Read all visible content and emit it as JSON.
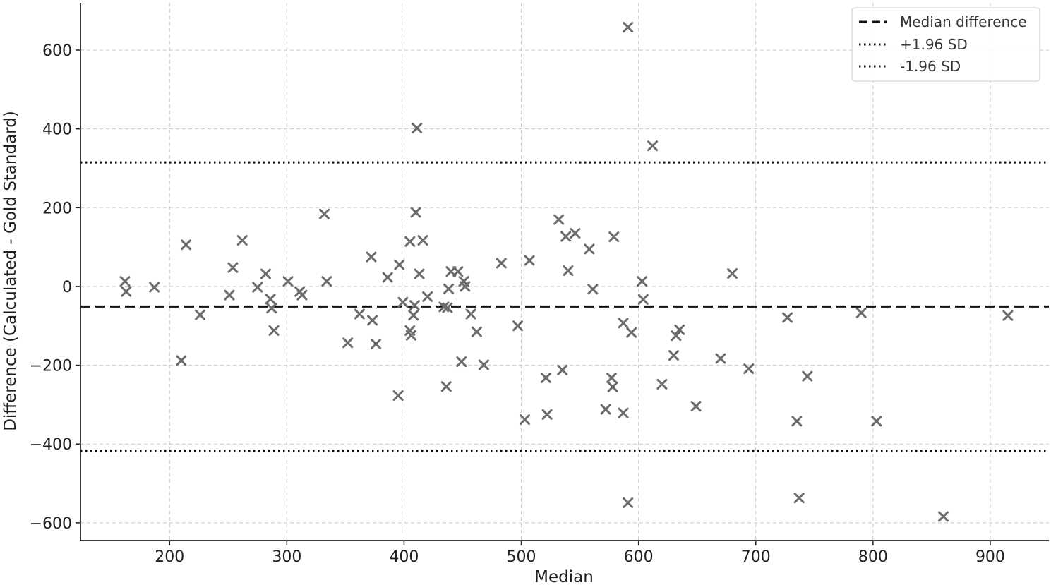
{
  "chart_data": {
    "type": "scatter",
    "title": "",
    "xlabel": "Median",
    "ylabel": "Difference (Calculated - Gold Standard)",
    "xlim": [
      124,
      950
    ],
    "ylim": [
      -645,
      720
    ],
    "xticks": [
      200,
      300,
      400,
      500,
      600,
      700,
      800,
      900
    ],
    "yticks": [
      -600,
      -400,
      -200,
      0,
      200,
      400,
      600
    ],
    "ytick_labels": [
      "−600",
      "−400",
      "−200",
      "0",
      "200",
      "400",
      "600"
    ],
    "grid": true,
    "legend_position": "top-right",
    "marker": "x",
    "marker_color": "#6b6b6b",
    "reference_lines": [
      {
        "name": "Median difference",
        "value": -51,
        "style": "dashed"
      },
      {
        "name": "+1.96 SD",
        "value": 315,
        "style": "dotted"
      },
      {
        "name": "-1.96 SD",
        "value": -417,
        "style": "dotted"
      }
    ],
    "points": [
      [
        162,
        13
      ],
      [
        163,
        -13
      ],
      [
        187,
        -2
      ],
      [
        210,
        -188
      ],
      [
        214,
        106
      ],
      [
        226,
        -72
      ],
      [
        251,
        -22
      ],
      [
        254,
        48
      ],
      [
        262,
        117
      ],
      [
        275,
        -2
      ],
      [
        282,
        32
      ],
      [
        286,
        -32
      ],
      [
        287,
        -55
      ],
      [
        289,
        -112
      ],
      [
        301,
        13
      ],
      [
        311,
        -13
      ],
      [
        313,
        -22
      ],
      [
        332,
        184
      ],
      [
        334,
        13
      ],
      [
        352,
        -143
      ],
      [
        362,
        -70
      ],
      [
        372,
        75
      ],
      [
        373,
        -86
      ],
      [
        376,
        -146
      ],
      [
        386,
        23
      ],
      [
        395,
        -277
      ],
      [
        396,
        55
      ],
      [
        399,
        -40
      ],
      [
        405,
        114
      ],
      [
        405,
        -112
      ],
      [
        406,
        -124
      ],
      [
        408,
        -73
      ],
      [
        409,
        -48
      ],
      [
        410,
        188
      ],
      [
        411,
        402
      ],
      [
        413,
        32
      ],
      [
        416,
        117
      ],
      [
        420,
        -26
      ],
      [
        434,
        -52
      ],
      [
        436,
        -254
      ],
      [
        437,
        -54
      ],
      [
        438,
        -6
      ],
      [
        440,
        38
      ],
      [
        446,
        38
      ],
      [
        449,
        -191
      ],
      [
        451,
        13
      ],
      [
        452,
        0
      ],
      [
        457,
        -70
      ],
      [
        462,
        -115
      ],
      [
        468,
        -199
      ],
      [
        483,
        59
      ],
      [
        497,
        -100
      ],
      [
        503,
        -338
      ],
      [
        507,
        66
      ],
      [
        521,
        -232
      ],
      [
        522,
        -325
      ],
      [
        532,
        170
      ],
      [
        535,
        -212
      ],
      [
        538,
        127
      ],
      [
        540,
        40
      ],
      [
        546,
        135
      ],
      [
        558,
        95
      ],
      [
        561,
        -7
      ],
      [
        572,
        -312
      ],
      [
        577,
        -232
      ],
      [
        578,
        -255
      ],
      [
        579,
        126
      ],
      [
        587,
        -321
      ],
      [
        587,
        -93
      ],
      [
        591,
        658
      ],
      [
        591,
        -549
      ],
      [
        594,
        -117
      ],
      [
        603,
        13
      ],
      [
        604,
        -33
      ],
      [
        612,
        357
      ],
      [
        620,
        -248
      ],
      [
        630,
        -175
      ],
      [
        632,
        -125
      ],
      [
        635,
        -110
      ],
      [
        649,
        -304
      ],
      [
        670,
        -183
      ],
      [
        680,
        33
      ],
      [
        694,
        -209
      ],
      [
        727,
        -79
      ],
      [
        735,
        -342
      ],
      [
        737,
        -537
      ],
      [
        744,
        -228
      ],
      [
        790,
        -67
      ],
      [
        803,
        -342
      ],
      [
        860,
        -584
      ],
      [
        915,
        -74
      ]
    ]
  }
}
